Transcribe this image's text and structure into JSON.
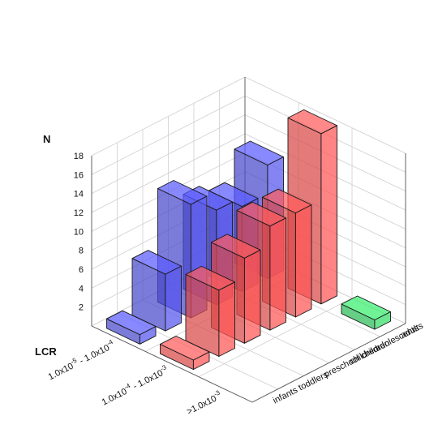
{
  "chart_data": {
    "type": "bar3d",
    "z_axis_label": "N",
    "x_axis_label": "LCR",
    "z_ticks": [
      "2",
      "4",
      "6",
      "8",
      "10",
      "12",
      "14",
      "16",
      "18"
    ],
    "zlim": [
      0,
      18
    ],
    "x_categories": [
      {
        "base": "1.0x10",
        "sup": "-5",
        "mid": " - 1.0x10",
        "sup2": "-4"
      },
      {
        "base": "1.0x10",
        "sup": "-4",
        "mid": " - 1.0x10",
        "sup2": "-3"
      },
      {
        "base": ">1.0x10",
        "sup": "-3",
        "mid": "",
        "sup2": ""
      }
    ],
    "y_categories": [
      "infants",
      "toddlers",
      "preschool children",
      "children",
      "adolescents",
      "adults"
    ],
    "colors": {
      "low": "#5555ee",
      "mid": "#ff5555",
      "high": "#33dd66"
    },
    "grid": true,
    "bars": [
      {
        "x": 0,
        "y": 0,
        "value": 1,
        "color": "low"
      },
      {
        "x": 0,
        "y": 1,
        "value": 6,
        "color": "low"
      },
      {
        "x": 0,
        "y": 2,
        "value": 12,
        "color": "low"
      },
      {
        "x": 0,
        "y": 3,
        "value": 10,
        "color": "low"
      },
      {
        "x": 0,
        "y": 4,
        "value": 9,
        "color": "low"
      },
      {
        "x": 0,
        "y": 5,
        "value": 12,
        "color": "low"
      },
      {
        "x": 1,
        "y": 0,
        "value": 1,
        "color": "mid"
      },
      {
        "x": 1,
        "y": 1,
        "value": 7,
        "color": "mid"
      },
      {
        "x": 1,
        "y": 2,
        "value": 9,
        "color": "mid"
      },
      {
        "x": 1,
        "y": 3,
        "value": 11,
        "color": "mid"
      },
      {
        "x": 1,
        "y": 4,
        "value": 11,
        "color": "mid"
      },
      {
        "x": 1,
        "y": 5,
        "value": 18,
        "color": "mid"
      },
      {
        "x": 2,
        "y": 5,
        "value": 1,
        "color": "high"
      }
    ]
  }
}
